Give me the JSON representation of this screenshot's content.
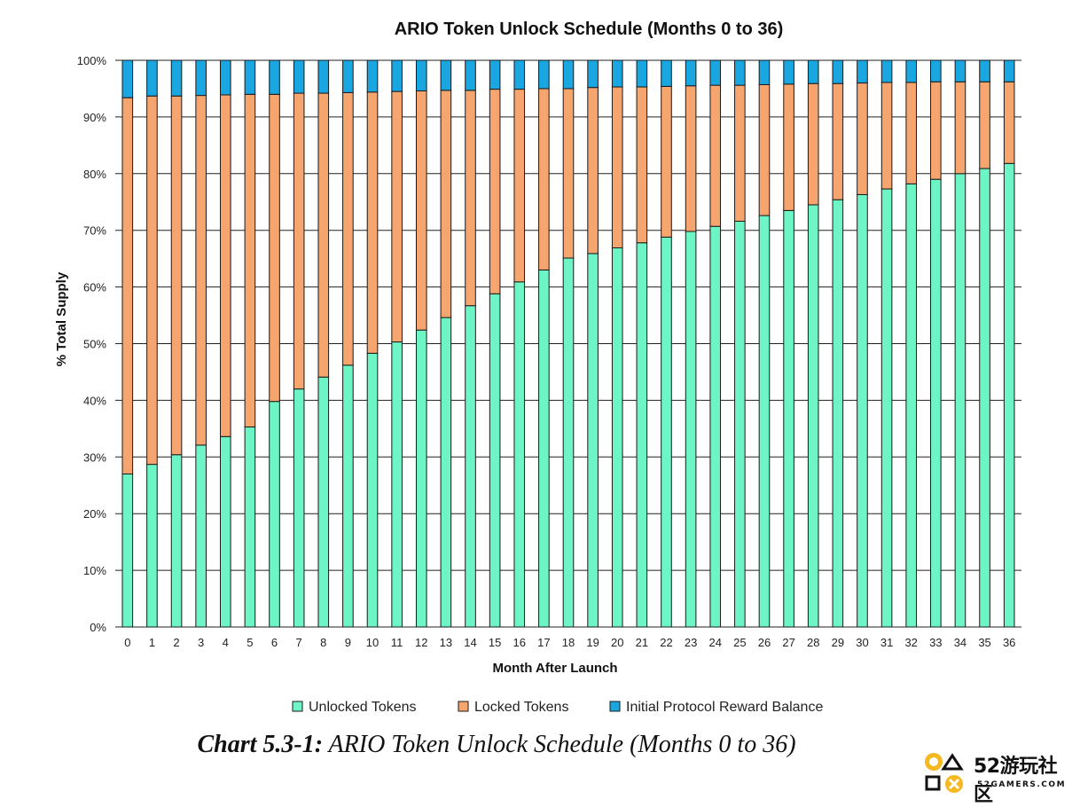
{
  "chart_data": {
    "type": "bar",
    "stacked": true,
    "title": "ARIO Token Unlock Schedule (Months 0 to 36)",
    "xlabel": "Month After Launch",
    "ylabel": "% Total Supply",
    "ylim": [
      0,
      100
    ],
    "y_ticks": [
      "0%",
      "10%",
      "20%",
      "30%",
      "40%",
      "50%",
      "60%",
      "70%",
      "80%",
      "90%",
      "100%"
    ],
    "grid": "horizontal",
    "legend_position": "bottom",
    "categories": [
      "0",
      "1",
      "2",
      "3",
      "4",
      "5",
      "6",
      "7",
      "8",
      "9",
      "10",
      "11",
      "12",
      "13",
      "14",
      "15",
      "16",
      "17",
      "18",
      "19",
      "20",
      "21",
      "22",
      "23",
      "24",
      "25",
      "26",
      "27",
      "28",
      "29",
      "30",
      "31",
      "32",
      "33",
      "34",
      "35",
      "36"
    ],
    "series": [
      {
        "name": "Unlocked Tokens",
        "color": "#6ef5c6",
        "values": [
          27.0,
          28.7,
          30.4,
          32.1,
          33.6,
          35.3,
          39.8,
          42.0,
          44.1,
          46.2,
          48.3,
          50.3,
          52.4,
          54.6,
          56.7,
          58.8,
          60.9,
          63.0,
          65.1,
          65.9,
          66.9,
          67.8,
          68.8,
          69.8,
          70.7,
          71.6,
          72.6,
          73.5,
          74.5,
          75.4,
          76.3,
          77.3,
          78.2,
          79.0,
          80.0,
          80.9,
          81.8
        ]
      },
      {
        "name": "Locked Tokens",
        "color": "#f7a56e",
        "values": [
          66.4,
          65.0,
          63.3,
          61.7,
          60.3,
          58.7,
          54.2,
          52.2,
          50.1,
          48.1,
          46.1,
          44.2,
          42.2,
          40.1,
          38.0,
          36.1,
          34.0,
          32.0,
          29.9,
          29.3,
          28.4,
          27.5,
          26.6,
          25.7,
          24.9,
          24.0,
          23.1,
          22.3,
          21.4,
          20.5,
          19.7,
          18.8,
          17.9,
          17.2,
          16.2,
          15.3,
          14.4
        ]
      },
      {
        "name": "Initial Protocol Reward Balance",
        "color": "#1aa6e0",
        "values": [
          6.6,
          6.3,
          6.3,
          6.2,
          6.1,
          6.0,
          6.0,
          5.8,
          5.8,
          5.7,
          5.6,
          5.5,
          5.4,
          5.3,
          5.3,
          5.1,
          5.1,
          5.0,
          5.0,
          4.8,
          4.7,
          4.7,
          4.6,
          4.5,
          4.4,
          4.4,
          4.3,
          4.2,
          4.1,
          4.1,
          4.0,
          3.9,
          3.9,
          3.8,
          3.8,
          3.8,
          3.8
        ]
      }
    ]
  },
  "caption": {
    "label": "Chart 5.3-1:",
    "text": " ARIO Token Unlock Schedule (Months 0 to 36)"
  },
  "logo": {
    "main": "52游玩社区",
    "sub": "52GAMERS.COM"
  }
}
